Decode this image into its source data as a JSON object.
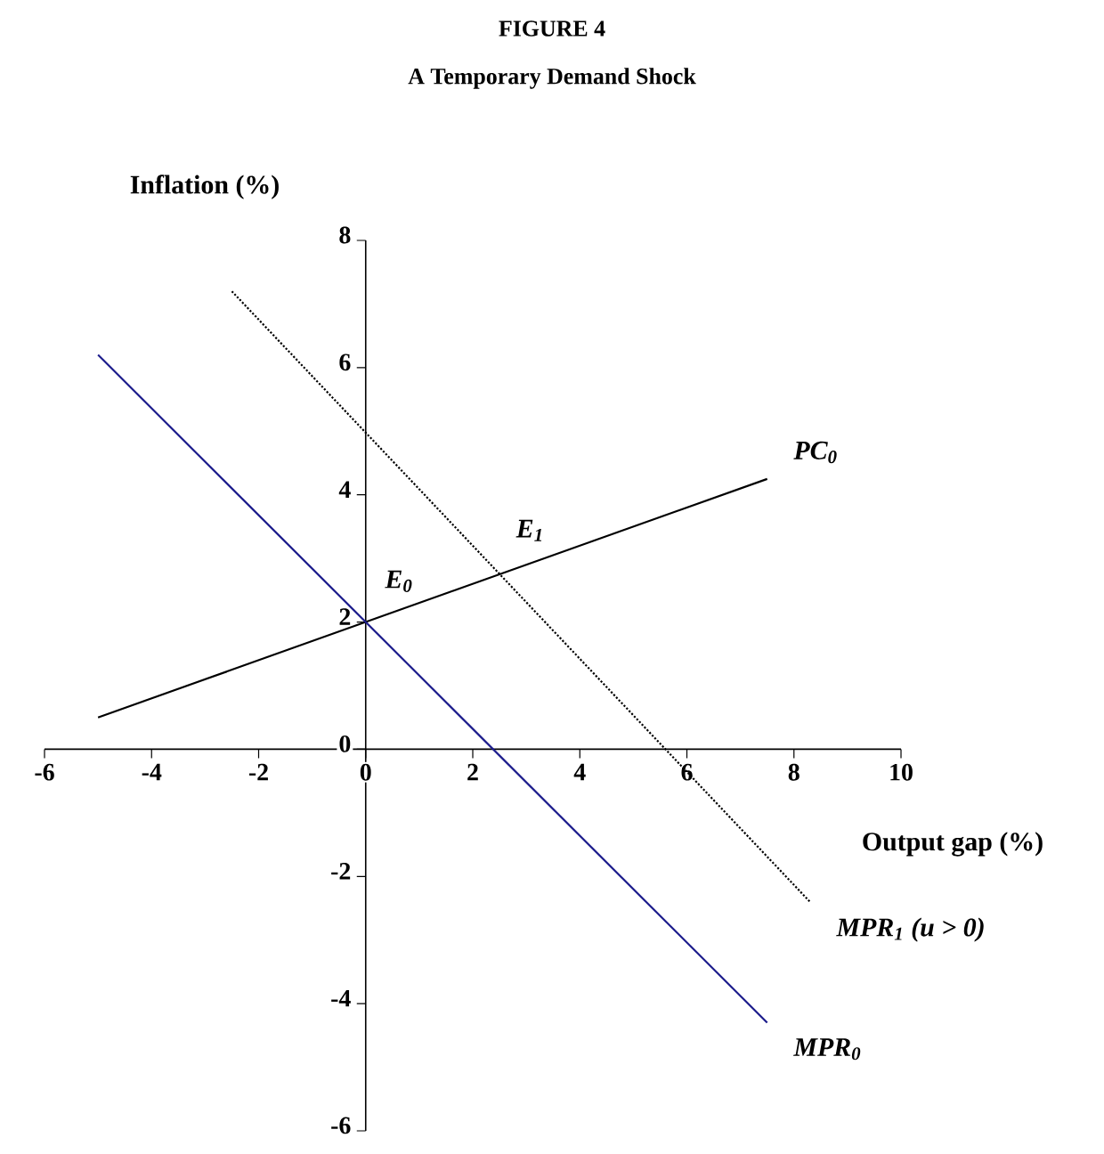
{
  "chart_data": {
    "type": "line",
    "title": "FIGURE 4",
    "subtitle": "A Temporary Demand Shock",
    "xlabel": "Output gap (%)",
    "ylabel": "Inflation (%)",
    "xlim": [
      -6,
      10
    ],
    "ylim": [
      -6,
      8
    ],
    "xticks": [
      -6,
      -4,
      -2,
      0,
      2,
      4,
      6,
      8,
      10
    ],
    "yticks": [
      -6,
      -4,
      -2,
      0,
      2,
      4,
      6,
      8
    ],
    "grid": false,
    "series": [
      {
        "name": "PC$_{0}$",
        "color": "#000000",
        "line_style": "solid",
        "x": [
          -5,
          7.5
        ],
        "values": [
          0.5,
          4.25
        ]
      },
      {
        "name": "MPR$_{0}$",
        "color": "#1c1c8c",
        "line_style": "solid",
        "x": [
          -5,
          7.5
        ],
        "values": [
          6.2,
          -4.3
        ]
      },
      {
        "name": "MPR$_{1}$ (u > 0)",
        "color": "#000000",
        "line_style": "dotted",
        "x": [
          -2.5,
          8.3
        ],
        "values": [
          7.2,
          -2.4
        ]
      }
    ],
    "annotations": [
      {
        "text": "E$_{0}$",
        "x": 0,
        "y": 2
      },
      {
        "text": "E$_{1}$",
        "x": 2.45,
        "y": 2.8
      }
    ]
  }
}
